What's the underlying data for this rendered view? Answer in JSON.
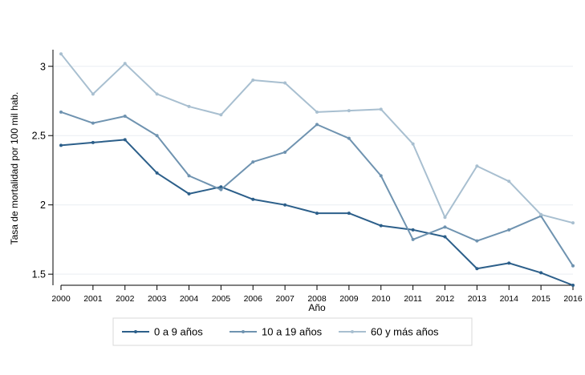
{
  "chart_data": {
    "type": "line",
    "title": "",
    "xlabel": "Año",
    "ylabel": "Tasa de mortalidad por 100 mil hab.",
    "x": [
      2000,
      2001,
      2002,
      2003,
      2004,
      2005,
      2006,
      2007,
      2008,
      2009,
      2010,
      2011,
      2012,
      2013,
      2014,
      2015,
      2016
    ],
    "xlim": [
      2000,
      2016
    ],
    "ylim": [
      1.42,
      3.12
    ],
    "yticks": [
      1.5,
      2,
      2.5,
      3
    ],
    "ytick_labels": [
      "1.5",
      "2",
      "2.5",
      "3"
    ],
    "grid": true,
    "legend_position": "bottom",
    "series": [
      {
        "name": "0 a 9 años",
        "color": "#2c5f8a",
        "values": [
          2.43,
          2.45,
          2.47,
          2.23,
          2.08,
          2.13,
          2.04,
          2.0,
          1.94,
          1.94,
          1.85,
          1.82,
          1.77,
          1.54,
          1.58,
          1.51,
          1.42
        ]
      },
      {
        "name": "10 a 19 años",
        "color": "#6f93b0",
        "values": [
          2.67,
          2.59,
          2.64,
          2.5,
          2.21,
          2.11,
          2.31,
          2.38,
          2.58,
          2.48,
          2.21,
          1.75,
          1.84,
          1.74,
          1.82,
          1.92,
          1.56
        ]
      },
      {
        "name": "60 y más años",
        "color": "#a8bfd0",
        "values": [
          3.09,
          2.8,
          3.02,
          2.8,
          2.71,
          2.65,
          2.9,
          2.88,
          2.67,
          2.68,
          2.69,
          2.44,
          1.91,
          2.28,
          2.17,
          1.93,
          1.87
        ]
      }
    ]
  }
}
